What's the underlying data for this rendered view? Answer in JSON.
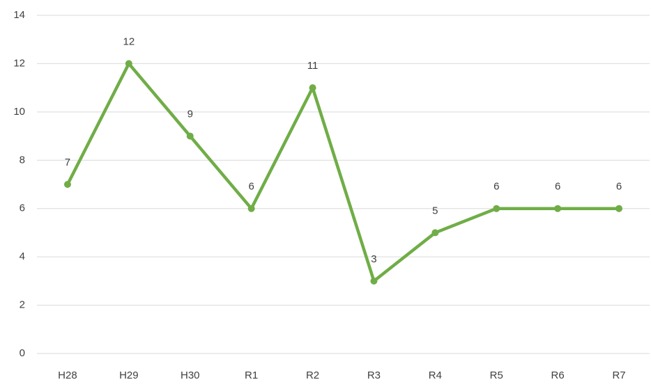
{
  "chart_data": {
    "type": "line",
    "categories": [
      "H28",
      "H29",
      "H30",
      "R1",
      "R2",
      "R3",
      "R4",
      "R5",
      "R6",
      "R7"
    ],
    "series": [
      {
        "color": "#70ad47",
        "values": [
          7,
          12,
          9,
          6,
          11,
          3,
          5,
          6,
          6,
          6
        ]
      }
    ],
    "ylim": [
      0,
      14
    ],
    "yticks": [
      0,
      2,
      4,
      6,
      8,
      10,
      12,
      14
    ],
    "grid": true,
    "data_labels": true
  }
}
